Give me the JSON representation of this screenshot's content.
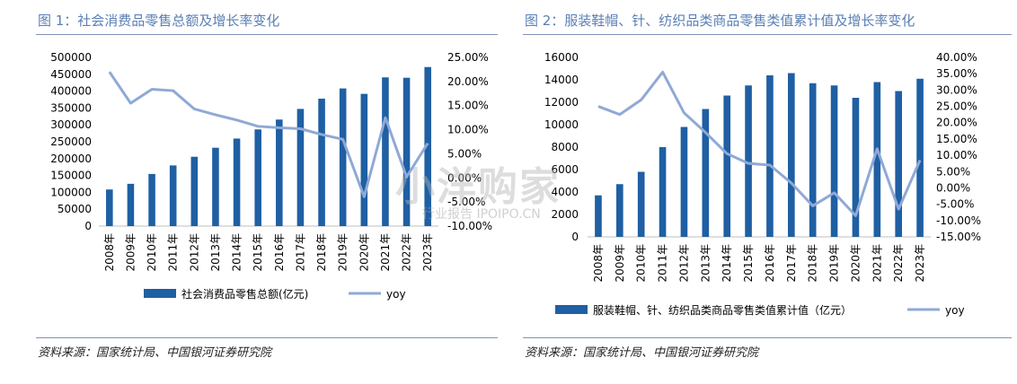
{
  "watermark": {
    "main": "小洋购家",
    "sub": "行业报告 IPOIPO.CN"
  },
  "colors": {
    "bar": "#1f5fa3",
    "line": "#8fa9d6",
    "title": "#5a7fb5"
  },
  "chart_data": [
    {
      "type": "bar",
      "title": "图 1：社会消费品零售总额及增长率变化",
      "source": "资料来源：国家统计局、中国银河证券研究院",
      "categories": [
        "2008年",
        "2009年",
        "2010年",
        "2011年",
        "2012年",
        "2013年",
        "2014年",
        "2015年",
        "2016年",
        "2017年",
        "2018年",
        "2019年",
        "2020年",
        "2021年",
        "2022年",
        "2023年"
      ],
      "series": [
        {
          "name": "社会消费品零售总额(亿元)",
          "kind": "bar",
          "axis": "left",
          "values": [
            108488,
            125343,
            154554,
            179804,
            205517,
            232253,
            259487,
            286588,
            315806,
            347327,
            377783,
            408017,
            391981,
            440823,
            439733,
            471495
          ]
        },
        {
          "name": "yoy",
          "kind": "line",
          "axis": "right",
          "values": [
            0.22,
            0.155,
            0.184,
            0.181,
            0.143,
            0.131,
            0.12,
            0.107,
            0.104,
            0.102,
            0.09,
            0.08,
            -0.039,
            0.125,
            0.002,
            0.072
          ]
        }
      ],
      "yleft": {
        "min": 0,
        "max": 500000,
        "ticks": [
          "0",
          "50000",
          "100000",
          "150000",
          "200000",
          "250000",
          "300000",
          "350000",
          "400000",
          "450000",
          "500000"
        ]
      },
      "yright": {
        "min": -0.1,
        "max": 0.25,
        "ticks": [
          "-10.00%",
          "-5.00%",
          "0.00%",
          "5.00%",
          "10.00%",
          "15.00%",
          "20.00%",
          "25.00%"
        ]
      },
      "legend_position": "bottom"
    },
    {
      "type": "bar",
      "title": "图 2：服装鞋帽、针、纺织品类商品零售类值累计值及增长率变化",
      "source": "资料来源：国家统计局、中国银河证券研究院",
      "categories": [
        "2008年",
        "2009年",
        "2010年",
        "2011年",
        "2012年",
        "2013年",
        "2014年",
        "2015年",
        "2016年",
        "2017年",
        "2018年",
        "2019年",
        "2020年",
        "2021年",
        "2022年",
        "2023年"
      ],
      "series": [
        {
          "name": "服装鞋帽、针、纺织品类商品零售类值累计值（亿元）",
          "kind": "bar",
          "axis": "left",
          "values": [
            3700,
            4700,
            5800,
            8000,
            9800,
            11400,
            12600,
            13500,
            14400,
            14600,
            13700,
            13500,
            12400,
            13800,
            13000,
            14100
          ]
        },
        {
          "name": "yoy",
          "kind": "line",
          "axis": "right",
          "values": [
            0.25,
            0.225,
            0.27,
            0.355,
            0.23,
            0.17,
            0.105,
            0.075,
            0.07,
            0.015,
            -0.055,
            -0.015,
            -0.085,
            0.12,
            -0.065,
            0.085
          ]
        }
      ],
      "yleft": {
        "min": 0,
        "max": 16000,
        "ticks": [
          "0",
          "2000",
          "4000",
          "6000",
          "8000",
          "10000",
          "12000",
          "14000",
          "16000"
        ]
      },
      "yright": {
        "min": -0.15,
        "max": 0.4,
        "ticks": [
          "-15.00%",
          "-10.00%",
          "-5.00%",
          "0.00%",
          "5.00%",
          "10.00%",
          "15.00%",
          "20.00%",
          "25.00%",
          "30.00%",
          "35.00%",
          "40.00%"
        ]
      },
      "legend_position": "bottom"
    }
  ]
}
